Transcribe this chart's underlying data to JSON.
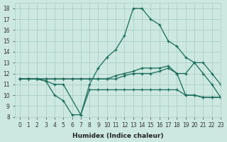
{
  "xlabel": "Humidex (Indice chaleur)",
  "xlim": [
    -0.5,
    23
  ],
  "ylim": [
    8,
    18.5
  ],
  "yticks": [
    8,
    9,
    10,
    11,
    12,
    13,
    14,
    15,
    16,
    17,
    18
  ],
  "xticks": [
    0,
    1,
    2,
    3,
    4,
    5,
    6,
    7,
    8,
    9,
    10,
    11,
    12,
    13,
    14,
    15,
    16,
    17,
    18,
    19,
    20,
    21,
    22,
    23
  ],
  "bg_color": "#cce8e0",
  "grid_color": "#aacfc8",
  "line_color": "#1a6b5a",
  "lines": [
    {
      "x": [
        0,
        1,
        2,
        3,
        4,
        5,
        7,
        8,
        9,
        10,
        11,
        12,
        13,
        14,
        15,
        16,
        17,
        18,
        19,
        20,
        21,
        22,
        23
      ],
      "y": [
        11.5,
        11.5,
        11.5,
        11.3,
        11.0,
        11.0,
        8.2,
        11.0,
        12.5,
        13.5,
        14.2,
        15.5,
        18.0,
        18.0,
        17.0,
        16.5,
        15.0,
        14.5,
        13.5,
        13.0,
        13.0,
        12.0,
        11.0
      ]
    },
    {
      "x": [
        0,
        1,
        2,
        3,
        4,
        5,
        6,
        7,
        8,
        9,
        10,
        11,
        12,
        13,
        14,
        15,
        16,
        17,
        18,
        19,
        20,
        21,
        22,
        23
      ],
      "y": [
        11.5,
        11.5,
        11.5,
        11.5,
        11.5,
        11.5,
        11.5,
        11.5,
        11.5,
        11.5,
        11.5,
        11.8,
        12.0,
        12.2,
        12.5,
        12.5,
        12.5,
        12.7,
        12.0,
        12.0,
        13.0,
        12.0,
        11.0,
        9.8
      ]
    },
    {
      "x": [
        0,
        1,
        2,
        3,
        4,
        5,
        6,
        7,
        8,
        9,
        10,
        11,
        12,
        13,
        14,
        15,
        16,
        17,
        18,
        19,
        20,
        21,
        22,
        23
      ],
      "y": [
        11.5,
        11.5,
        11.5,
        11.5,
        11.5,
        11.5,
        11.5,
        11.5,
        11.5,
        11.5,
        11.5,
        11.5,
        11.8,
        12.0,
        12.0,
        12.0,
        12.2,
        12.5,
        12.0,
        10.0,
        10.0,
        9.8,
        9.8,
        9.8
      ]
    },
    {
      "x": [
        0,
        1,
        2,
        3,
        4,
        5,
        6,
        7,
        8,
        9,
        10,
        11,
        12,
        13,
        14,
        15,
        16,
        17,
        18,
        19,
        20,
        21,
        22,
        23
      ],
      "y": [
        11.5,
        11.5,
        11.5,
        11.3,
        10.0,
        9.5,
        8.2,
        8.2,
        10.5,
        10.5,
        10.5,
        10.5,
        10.5,
        10.5,
        10.5,
        10.5,
        10.5,
        10.5,
        10.5,
        10.0,
        10.0,
        9.8,
        9.8,
        9.8
      ]
    }
  ]
}
